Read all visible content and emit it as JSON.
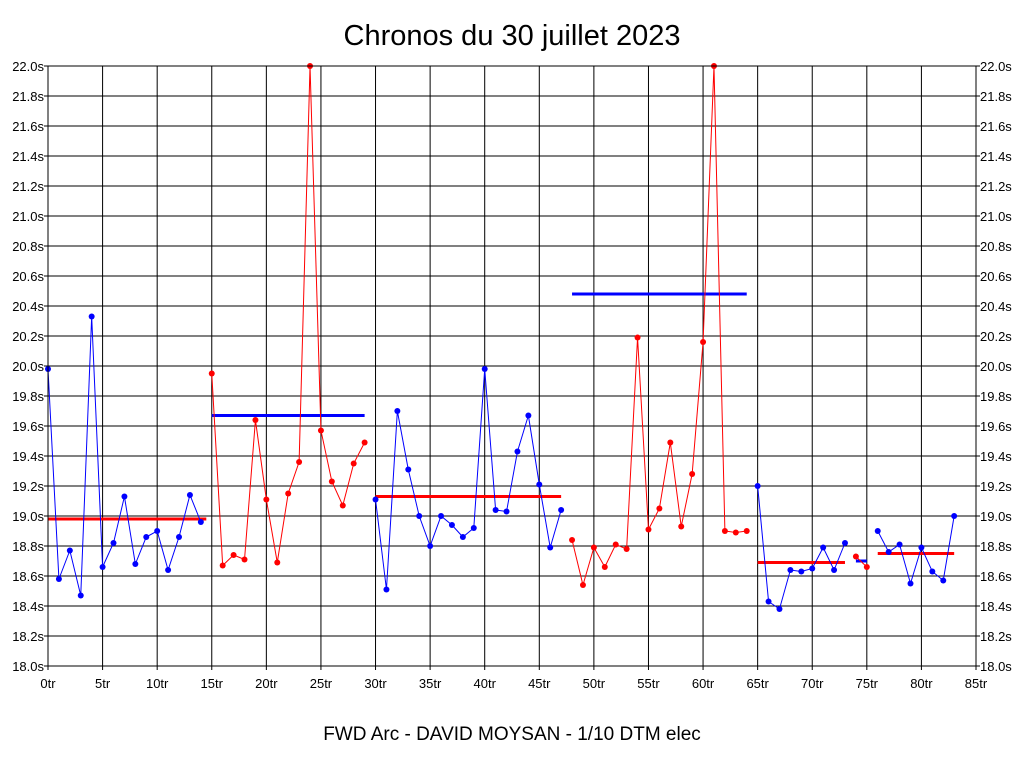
{
  "chart_data": {
    "type": "line",
    "title": "Chronos du 30 juillet 2023",
    "footer": "FWD Arc - DAVID MOYSAN - 1/10 DTM elec",
    "xlim": [
      0,
      85
    ],
    "ylim": [
      18.0,
      22.0
    ],
    "x_ticks": [
      {
        "value": 0,
        "label": "0tr"
      },
      {
        "value": 5,
        "label": "5tr"
      },
      {
        "value": 10,
        "label": "10tr"
      },
      {
        "value": 15,
        "label": "15tr"
      },
      {
        "value": 20,
        "label": "20tr"
      },
      {
        "value": 25,
        "label": "25tr"
      },
      {
        "value": 30,
        "label": "30tr"
      },
      {
        "value": 35,
        "label": "35tr"
      },
      {
        "value": 40,
        "label": "40tr"
      },
      {
        "value": 45,
        "label": "45tr"
      },
      {
        "value": 50,
        "label": "50tr"
      },
      {
        "value": 55,
        "label": "55tr"
      },
      {
        "value": 60,
        "label": "60tr"
      },
      {
        "value": 65,
        "label": "65tr"
      },
      {
        "value": 70,
        "label": "70tr"
      },
      {
        "value": 75,
        "label": "75tr"
      },
      {
        "value": 80,
        "label": "80tr"
      },
      {
        "value": 85,
        "label": "85tr"
      }
    ],
    "y_ticks": [
      {
        "value": 18.0,
        "label": "18.0s"
      },
      {
        "value": 18.2,
        "label": "18.2s"
      },
      {
        "value": 18.4,
        "label": "18.4s"
      },
      {
        "value": 18.6,
        "label": "18.6s"
      },
      {
        "value": 18.8,
        "label": "18.8s"
      },
      {
        "value": 19.0,
        "label": "19.0s"
      },
      {
        "value": 19.2,
        "label": "19.2s"
      },
      {
        "value": 19.4,
        "label": "19.4s"
      },
      {
        "value": 19.6,
        "label": "19.6s"
      },
      {
        "value": 19.8,
        "label": "19.8s"
      },
      {
        "value": 20.0,
        "label": "20.0s"
      },
      {
        "value": 20.2,
        "label": "20.2s"
      },
      {
        "value": 20.4,
        "label": "20.4s"
      },
      {
        "value": 20.6,
        "label": "20.6s"
      },
      {
        "value": 20.8,
        "label": "20.8s"
      },
      {
        "value": 21.0,
        "label": "21.0s"
      },
      {
        "value": 21.2,
        "label": "21.2s"
      },
      {
        "value": 21.4,
        "label": "21.4s"
      },
      {
        "value": 21.6,
        "label": "21.6s"
      },
      {
        "value": 21.8,
        "label": "21.8s"
      },
      {
        "value": 22.0,
        "label": "22.0s"
      }
    ],
    "grid": true,
    "colors": {
      "blue": "#0000ff",
      "red": "#ff0000"
    },
    "series": [
      {
        "color": "#0000ff",
        "x": [
          0,
          1,
          2,
          3,
          4,
          5,
          6,
          7,
          8,
          9,
          10,
          11,
          12,
          13,
          14
        ],
        "y": [
          19.98,
          18.58,
          18.77,
          18.47,
          20.33,
          18.66,
          18.82,
          19.13,
          18.68,
          18.86,
          18.9,
          18.64,
          18.86,
          19.14,
          18.96
        ]
      },
      {
        "color": "#ff0000",
        "x": [
          15,
          16,
          17,
          18,
          19,
          20,
          21,
          22,
          23,
          24,
          25,
          26,
          27,
          28,
          29
        ],
        "y": [
          19.95,
          18.67,
          18.74,
          18.71,
          19.64,
          19.11,
          18.69,
          19.15,
          19.36,
          22.0,
          19.57,
          19.23,
          19.07,
          19.35,
          19.49
        ]
      },
      {
        "color": "#0000ff",
        "x": [
          30,
          31,
          32,
          33,
          34,
          35,
          36,
          37,
          38,
          39,
          40,
          41,
          42,
          43,
          44,
          45,
          46,
          47
        ],
        "y": [
          19.11,
          18.51,
          19.7,
          19.31,
          19.0,
          18.8,
          19.0,
          18.94,
          18.86,
          18.92,
          19.98,
          19.04,
          19.03,
          19.43,
          19.67,
          19.21,
          18.79,
          19.04
        ]
      },
      {
        "color": "#ff0000",
        "x": [
          48,
          49,
          50,
          51,
          52,
          53,
          54,
          55,
          56,
          57,
          58,
          59,
          60,
          61,
          62,
          63,
          64
        ],
        "y": [
          18.84,
          18.54,
          18.79,
          18.66,
          18.81,
          18.78,
          20.19,
          18.91,
          19.05,
          19.49,
          18.93,
          19.28,
          20.16,
          22.0,
          18.9,
          18.89,
          18.9
        ]
      },
      {
        "color": "#0000ff",
        "x": [
          65,
          66,
          67,
          68,
          69,
          70,
          71,
          72,
          73
        ],
        "y": [
          19.2,
          18.43,
          18.38,
          18.64,
          18.63,
          18.65,
          18.79,
          18.64,
          18.82
        ]
      },
      {
        "color": "#ff0000",
        "x": [
          74,
          75
        ],
        "y": [
          18.73,
          18.66
        ]
      },
      {
        "color": "#0000ff",
        "x": [
          76,
          77,
          78,
          79,
          80,
          81,
          82,
          83
        ],
        "y": [
          18.9,
          18.76,
          18.81,
          18.55,
          18.79,
          18.63,
          18.57,
          19.0
        ]
      }
    ],
    "averages": [
      {
        "color": "#ff0000",
        "x_start": 0,
        "x_end": 14.5,
        "y": 18.98
      },
      {
        "color": "#0000ff",
        "x_start": 15,
        "x_end": 29,
        "y": 19.67
      },
      {
        "color": "#ff0000",
        "x_start": 30,
        "x_end": 47,
        "y": 19.13
      },
      {
        "color": "#0000ff",
        "x_start": 48,
        "x_end": 64,
        "y": 20.48
      },
      {
        "color": "#ff0000",
        "x_start": 65,
        "x_end": 73,
        "y": 18.69
      },
      {
        "color": "#0000ff",
        "x_start": 74,
        "x_end": 75,
        "y": 18.7
      },
      {
        "color": "#ff0000",
        "x_start": 76,
        "x_end": 83,
        "y": 18.75
      }
    ]
  }
}
